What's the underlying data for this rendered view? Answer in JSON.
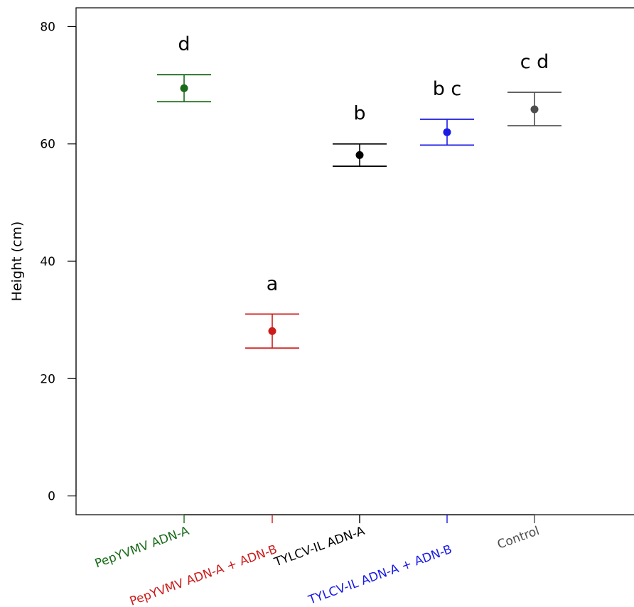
{
  "chart_data": {
    "type": "scatter",
    "ylabel": "Height (cm)",
    "ylim": [
      -3.2,
      83.2
    ],
    "yticks": [
      0,
      20,
      40,
      60,
      80
    ],
    "categories": [
      "PepYVMV ADN-A",
      "PepYVMV ADN-A + ADN-B",
      "TYLCV-IL ADN-A",
      "TYLCV-IL ADN-A + ADN-B",
      "Control"
    ],
    "colors": [
      "#1a6b1a",
      "#cc1b1b",
      "#000000",
      "#1a1ae6",
      "#4d4d4d"
    ],
    "values": [
      69.5,
      28.1,
      58.1,
      62.0,
      65.9
    ],
    "lower": [
      67.2,
      25.2,
      56.2,
      59.8,
      63.1
    ],
    "upper": [
      71.8,
      31.0,
      60.0,
      64.2,
      68.8
    ],
    "group_letters": [
      "d",
      "a",
      "b",
      "b c",
      "c d"
    ],
    "grid": false,
    "legend": "none"
  }
}
